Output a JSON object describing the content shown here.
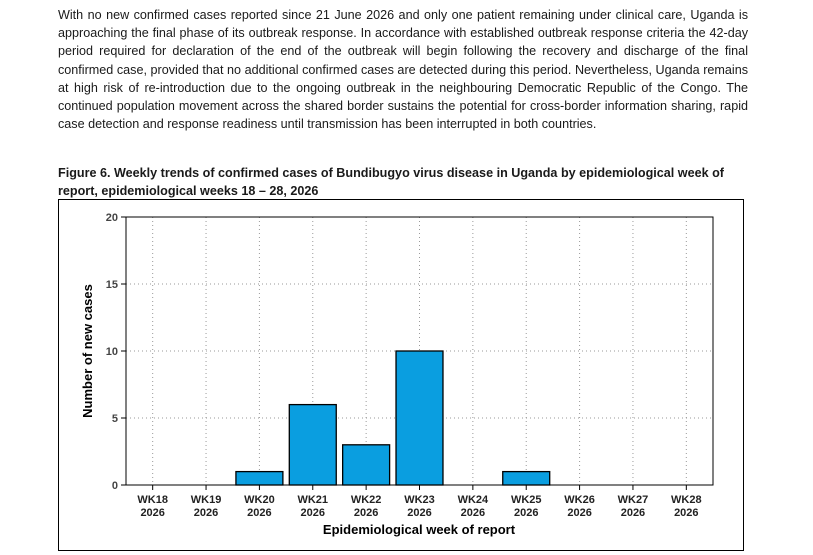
{
  "document": {
    "paragraph": "With no new confirmed cases reported since 21 June 2026 and only one patient remaining under clinical care, Uganda is approaching the final phase of its outbreak response. In accordance with established outbreak response criteria the 42-day period required for declaration of the end of the outbreak will begin following the recovery and discharge of the final confirmed case, provided that no additional confirmed cases are detected during this period. Nevertheless, Uganda remains at high risk of re-introduction due to the ongoing outbreak in the neighbouring Democratic Republic of the Congo. The continued population movement across the shared border sustains the potential for cross-border information sharing, rapid case detection and response readiness until transmission has been interrupted in both countries.",
    "figure_title": "Figure 6.  Weekly trends of confirmed cases of Bundibugyo virus disease in Uganda by epidemiological week of report, epidemiological weeks 18 – 28, 2026"
  },
  "chart_data": {
    "type": "bar",
    "categories": [
      "WK18 2026",
      "WK19 2026",
      "WK20 2026",
      "WK21 2026",
      "WK22 2026",
      "WK23 2026",
      "WK24 2026",
      "WK25 2026",
      "WK26 2026",
      "WK27 2026",
      "WK28 2026"
    ],
    "category_lines": [
      [
        "WK18",
        "2026"
      ],
      [
        "WK19",
        "2026"
      ],
      [
        "WK20",
        "2026"
      ],
      [
        "WK21",
        "2026"
      ],
      [
        "WK22",
        "2026"
      ],
      [
        "WK23",
        "2026"
      ],
      [
        "WK24",
        "2026"
      ],
      [
        "WK25",
        "2026"
      ],
      [
        "WK26",
        "2026"
      ],
      [
        "WK27",
        "2026"
      ],
      [
        "WK28",
        "2026"
      ]
    ],
    "values": [
      0,
      0,
      1,
      6,
      3,
      10,
      0,
      1,
      0,
      0,
      0
    ],
    "xlabel": "Epidemiological week of report",
    "ylabel": "Number of new cases",
    "ylim": [
      0,
      20
    ],
    "yticks": [
      0,
      5,
      10,
      15,
      20
    ],
    "grid": true,
    "bar_color": "#0a9ee0",
    "bar_edge_color": "#000000"
  }
}
